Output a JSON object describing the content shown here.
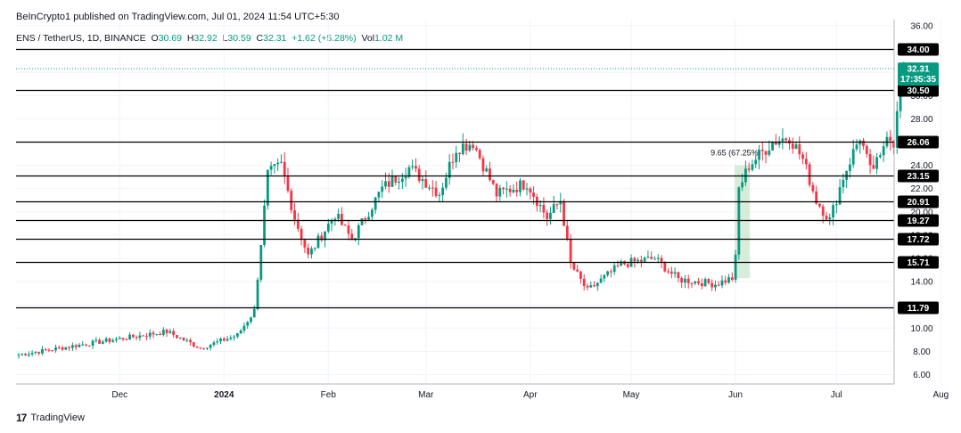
{
  "header": "BeInCrypto1 published on TradingView.com, Jul 01, 2024 11:54 UTC+5:30",
  "symbol": {
    "pair": "ENS / TetherUS, 1D, BINANCE",
    "open_label": "O",
    "open": "30.69",
    "high_label": "H",
    "high": "32.92",
    "low_label": "L",
    "low": "30.59",
    "close_label": "C",
    "close": "32.31",
    "change": "+1.62 (+5.28%)",
    "vol_label": "Vol",
    "vol": "1.02 M"
  },
  "footer": {
    "logo_mark": "17",
    "brand": "TradingView"
  },
  "colors": {
    "up": "#089981",
    "down": "#f23645",
    "level": "#000000",
    "price_badge": "#089981",
    "range_fill": "#c8e6c9"
  },
  "chart_data": {
    "type": "candlestick",
    "y_ticks": [
      "6.00",
      "8.00",
      "10.00",
      "12.00",
      "14.00",
      "16.00",
      "18.00",
      "20.00",
      "22.00",
      "24.00",
      "26.00",
      "28.00",
      "30.00",
      "32.00",
      "34.00",
      "36.00"
    ],
    "x_ticks": [
      "Dec",
      "2024",
      "Feb",
      "Mar",
      "Apr",
      "May",
      "Jun",
      "Jul",
      "Aug"
    ],
    "levels": [
      "34.00",
      "30.50",
      "26.06",
      "23.15",
      "20.91",
      "19.27",
      "17.72",
      "15.71",
      "11.79"
    ],
    "last_price": "32.31",
    "countdown": "17:35:35",
    "annotation": "9.65 (67.25%)",
    "anchors": [
      {
        "date": "2023-11-05",
        "close": 7.9
      },
      {
        "date": "2023-11-20",
        "close": 8.6
      },
      {
        "date": "2023-12-15",
        "close": 9.7
      },
      {
        "date": "2023-12-25",
        "close": 8.3
      },
      {
        "date": "2024-01-05",
        "close": 9.4
      },
      {
        "date": "2024-01-10",
        "close": 11.5
      },
      {
        "date": "2024-01-14",
        "close": 23.2
      },
      {
        "date": "2024-01-18",
        "close": 24.0
      },
      {
        "date": "2024-01-22",
        "close": 19.5
      },
      {
        "date": "2024-01-26",
        "close": 16.2
      },
      {
        "date": "2024-02-03",
        "close": 19.8
      },
      {
        "date": "2024-02-08",
        "close": 17.6
      },
      {
        "date": "2024-02-17",
        "close": 22.0
      },
      {
        "date": "2024-02-25",
        "close": 23.8
      },
      {
        "date": "2024-03-05",
        "close": 21.6
      },
      {
        "date": "2024-03-10",
        "close": 25.5
      },
      {
        "date": "2024-03-15",
        "close": 26.0
      },
      {
        "date": "2024-03-22",
        "close": 21.5
      },
      {
        "date": "2024-03-31",
        "close": 22.5
      },
      {
        "date": "2024-04-06",
        "close": 19.5
      },
      {
        "date": "2024-04-10",
        "close": 21.0
      },
      {
        "date": "2024-04-13",
        "close": 15.5
      },
      {
        "date": "2024-04-18",
        "close": 13.2
      },
      {
        "date": "2024-04-28",
        "close": 15.5
      },
      {
        "date": "2024-05-08",
        "close": 16.0
      },
      {
        "date": "2024-05-15",
        "close": 14.2
      },
      {
        "date": "2024-05-26",
        "close": 13.8
      },
      {
        "date": "2024-05-31",
        "close": 14.3
      },
      {
        "date": "2024-06-01",
        "close": 16.0
      },
      {
        "date": "2024-06-02",
        "close": 22.0
      },
      {
        "date": "2024-06-05",
        "close": 24.0
      },
      {
        "date": "2024-06-12",
        "close": 26.0
      },
      {
        "date": "2024-06-17",
        "close": 26.5
      },
      {
        "date": "2024-06-21",
        "close": 24.5
      },
      {
        "date": "2024-06-25",
        "close": 21.0
      },
      {
        "date": "2024-06-29",
        "close": 19.3
      },
      {
        "date": "2024-07-03",
        "close": 23.0
      },
      {
        "date": "2024-07-08",
        "close": 26.5
      },
      {
        "date": "2024-07-11",
        "close": 23.5
      },
      {
        "date": "2024-07-14",
        "close": 24.5
      },
      {
        "date": "2024-07-16",
        "close": 27.0
      },
      {
        "date": "2024-07-18",
        "close": 26.0
      },
      {
        "date": "2024-07-20",
        "close": 30.69
      },
      {
        "date": "2024-07-21",
        "close": 32.31
      }
    ]
  }
}
